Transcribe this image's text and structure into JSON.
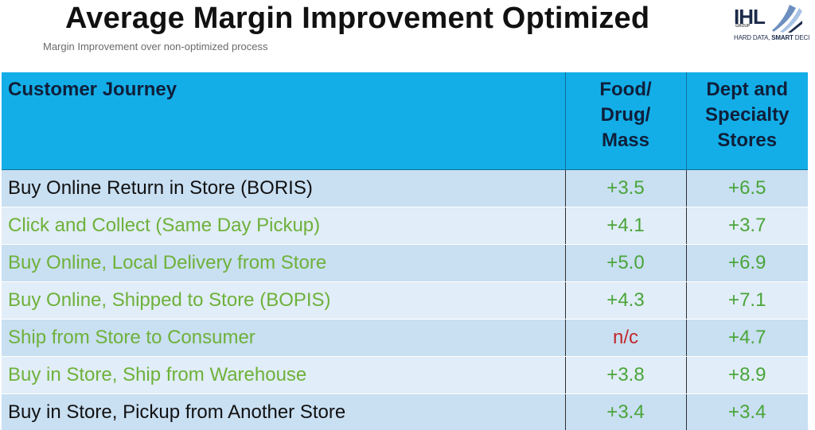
{
  "header": {
    "title": "Average Margin Improvement Optimized",
    "subtitle": "Margin Improvement over non-optimized process"
  },
  "logo": {
    "mark": "IHL",
    "sub": "GROUP",
    "tagline_plain": "HARD DATA, ",
    "tagline_bold": "SMART",
    "tagline_end": " DECI",
    "icon": "ihl-swoosh-icon"
  },
  "table": {
    "columns": [
      "Customer Journey",
      "Food/ Drug/ Mass",
      "Dept and Specialty Stores"
    ],
    "column_lines": [
      [
        "Customer Journey"
      ],
      [
        "Food/",
        "Drug/",
        "Mass"
      ],
      [
        "Dept and",
        "Specialty",
        "Stores"
      ]
    ],
    "rows": [
      {
        "journey": "Buy Online Return in Store (BORIS)",
        "fdm": "+3.5",
        "dept": "+6.5",
        "journey_color": "black",
        "fdm_color": "greennum"
      },
      {
        "journey": "Click and Collect (Same Day Pickup)",
        "fdm": "+4.1",
        "dept": "+3.7",
        "journey_color": "green",
        "fdm_color": "greennum"
      },
      {
        "journey": "Buy Online, Local Delivery from Store",
        "fdm": "+5.0",
        "dept": "+6.9",
        "journey_color": "green",
        "fdm_color": "greennum"
      },
      {
        "journey": "Buy Online, Shipped to Store (BOPIS)",
        "fdm": "+4.3",
        "dept": "+7.1",
        "journey_color": "green",
        "fdm_color": "greennum"
      },
      {
        "journey": "Ship from Store to Consumer",
        "fdm": "n/c",
        "dept": "+4.7",
        "journey_color": "green",
        "fdm_color": "red"
      },
      {
        "journey": "Buy in Store, Ship from Warehouse",
        "fdm": "+3.8",
        "dept": "+8.9",
        "journey_color": "green",
        "fdm_color": "greennum"
      },
      {
        "journey": "Buy in Store, Pickup from Another Store",
        "fdm": "+3.4",
        "dept": "+3.4",
        "journey_color": "black",
        "fdm_color": "greennum"
      }
    ]
  },
  "colors": {
    "header_bg": "#13aee8",
    "row_odd": "#c9dff2",
    "row_even": "#e1edf8",
    "green_text": "#6eb13a",
    "green_number": "#4aa53a",
    "red_text": "#c0282a"
  }
}
